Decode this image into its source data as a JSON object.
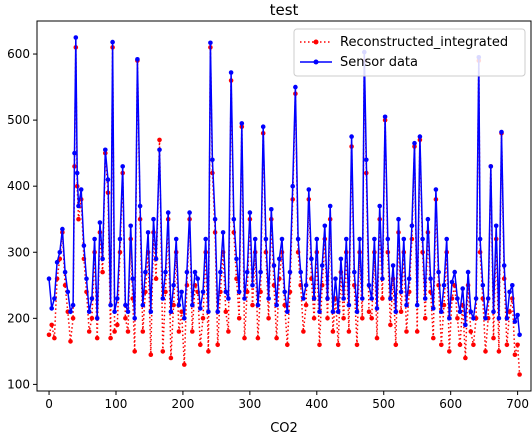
{
  "chart_data": {
    "type": "line",
    "title": "test",
    "xlabel": "CO2",
    "ylabel": "",
    "xlim": [
      -18,
      720
    ],
    "ylim": [
      90,
      650
    ],
    "x_ticks": [
      0,
      100,
      200,
      300,
      400,
      500,
      600,
      700
    ],
    "y_ticks": [
      100,
      200,
      300,
      400,
      500,
      600
    ],
    "grid": false,
    "legend_position": "top-right",
    "series": [
      {
        "name": "Reconstructed_integrated",
        "color": "#ff0000",
        "line_style": "dotted",
        "marker": "circle",
        "x": [
          0,
          4,
          8,
          12,
          16,
          20,
          24,
          28,
          32,
          36,
          38,
          40,
          42,
          44,
          48,
          52,
          56,
          60,
          64,
          68,
          72,
          76,
          80,
          84,
          88,
          92,
          95,
          98,
          102,
          106,
          110,
          114,
          118,
          122,
          125,
          128,
          132,
          136,
          140,
          144,
          148,
          152,
          156,
          160,
          165,
          170,
          174,
          178,
          182,
          186,
          190,
          194,
          198,
          202,
          206,
          210,
          214,
          218,
          222,
          226,
          230,
          234,
          238,
          241,
          244,
          248,
          252,
          256,
          260,
          264,
          268,
          272,
          276,
          280,
          284,
          288,
          292,
          296,
          300,
          304,
          308,
          312,
          316,
          320,
          324,
          328,
          332,
          336,
          340,
          344,
          348,
          352,
          356,
          360,
          364,
          368,
          372,
          376,
          380,
          384,
          388,
          392,
          396,
          400,
          404,
          408,
          412,
          416,
          420,
          424,
          428,
          432,
          436,
          440,
          444,
          448,
          452,
          456,
          460,
          464,
          468,
          471,
          474,
          478,
          482,
          486,
          490,
          494,
          498,
          502,
          506,
          510,
          514,
          518,
          522,
          526,
          530,
          534,
          538,
          542,
          546,
          550,
          554,
          558,
          562,
          566,
          570,
          574,
          578,
          582,
          586,
          590,
          594,
          598,
          602,
          606,
          610,
          614,
          618,
          622,
          626,
          630,
          634,
          638,
          642,
          644,
          648,
          652,
          656,
          660,
          664,
          668,
          672,
          676,
          680,
          684,
          688,
          692,
          696,
          700,
          703
        ],
        "y": [
          175,
          190,
          170,
          260,
          290,
          330,
          250,
          210,
          165,
          200,
          430,
          610,
          400,
          350,
          380,
          290,
          240,
          180,
          200,
          300,
          170,
          330,
          270,
          450,
          390,
          170,
          610,
          180,
          190,
          300,
          420,
          200,
          180,
          320,
          230,
          150,
          590,
          350,
          180,
          240,
          300,
          145,
          330,
          260,
          470,
          150,
          240,
          350,
          140,
          220,
          300,
          180,
          210,
          130,
          250,
          350,
          180,
          250,
          240,
          160,
          200,
          300,
          150,
          610,
          420,
          330,
          160,
          240,
          300,
          210,
          180,
          560,
          330,
          260,
          200,
          490,
          170,
          240,
          350,
          220,
          300,
          170,
          240,
          480,
          300,
          200,
          350,
          250,
          170,
          260,
          300,
          220,
          160,
          240,
          380,
          540,
          300,
          250,
          180,
          220,
          380,
          260,
          200,
          300,
          160,
          250,
          320,
          200,
          350,
          180,
          230,
          160,
          270,
          200,
          300,
          180,
          460,
          250,
          160,
          300,
          200,
          590,
          420,
          210,
          200,
          300,
          170,
          350,
          230,
          500,
          300,
          190,
          260,
          160,
          330,
          210,
          300,
          180,
          240,
          320,
          460,
          180,
          470,
          300,
          200,
          330,
          240,
          170,
          380,
          250,
          160,
          220,
          300,
          150,
          230,
          250,
          200,
          160,
          220,
          140,
          250,
          180,
          160,
          200,
          590,
          300,
          230,
          150,
          200,
          430,
          170,
          320,
          150,
          480,
          260,
          160,
          210,
          230,
          145,
          160,
          115
        ]
      },
      {
        "name": "Sensor data",
        "color": "#0000ff",
        "line_style": "solid",
        "marker": "circle",
        "x": [
          0,
          4,
          8,
          12,
          16,
          20,
          24,
          28,
          32,
          36,
          38,
          40,
          42,
          44,
          48,
          52,
          56,
          60,
          64,
          68,
          72,
          76,
          80,
          84,
          88,
          92,
          95,
          98,
          102,
          106,
          110,
          114,
          118,
          122,
          125,
          128,
          132,
          136,
          140,
          144,
          148,
          152,
          156,
          160,
          165,
          170,
          174,
          178,
          182,
          186,
          190,
          194,
          198,
          202,
          206,
          210,
          214,
          218,
          222,
          226,
          230,
          234,
          238,
          241,
          244,
          248,
          252,
          256,
          260,
          264,
          268,
          272,
          276,
          280,
          284,
          288,
          292,
          296,
          300,
          304,
          308,
          312,
          316,
          320,
          324,
          328,
          332,
          336,
          340,
          344,
          348,
          352,
          356,
          360,
          364,
          368,
          372,
          376,
          380,
          384,
          388,
          392,
          396,
          400,
          404,
          408,
          412,
          416,
          420,
          424,
          428,
          432,
          436,
          440,
          444,
          448,
          452,
          456,
          460,
          464,
          468,
          471,
          474,
          478,
          482,
          486,
          490,
          494,
          498,
          502,
          506,
          510,
          514,
          518,
          522,
          526,
          530,
          534,
          538,
          542,
          546,
          550,
          554,
          558,
          562,
          566,
          570,
          574,
          578,
          582,
          586,
          590,
          594,
          598,
          602,
          606,
          610,
          614,
          618,
          622,
          626,
          630,
          634,
          638,
          642,
          644,
          648,
          652,
          656,
          660,
          664,
          668,
          672,
          676,
          680,
          684,
          688,
          692,
          696,
          700,
          703
        ],
        "y": [
          260,
          215,
          230,
          285,
          300,
          335,
          270,
          240,
          210,
          220,
          450,
          625,
          420,
          370,
          395,
          310,
          260,
          210,
          230,
          320,
          200,
          345,
          290,
          455,
          410,
          220,
          618,
          210,
          230,
          320,
          430,
          220,
          210,
          340,
          260,
          200,
          592,
          370,
          220,
          270,
          330,
          210,
          350,
          290,
          455,
          230,
          270,
          360,
          210,
          250,
          320,
          220,
          240,
          200,
          270,
          360,
          220,
          270,
          260,
          215,
          240,
          320,
          210,
          617,
          440,
          350,
          210,
          270,
          330,
          240,
          230,
          572,
          350,
          290,
          240,
          495,
          230,
          270,
          360,
          250,
          320,
          220,
          270,
          490,
          320,
          230,
          365,
          280,
          220,
          290,
          320,
          240,
          210,
          270,
          400,
          550,
          320,
          270,
          230,
          250,
          395,
          290,
          230,
          320,
          210,
          280,
          340,
          230,
          370,
          210,
          260,
          210,
          290,
          230,
          320,
          220,
          475,
          270,
          210,
          320,
          230,
          603,
          440,
          250,
          230,
          320,
          215,
          370,
          260,
          505,
          320,
          230,
          280,
          210,
          350,
          240,
          320,
          220,
          260,
          340,
          465,
          220,
          475,
          320,
          230,
          350,
          260,
          215,
          395,
          270,
          210,
          250,
          320,
          200,
          255,
          270,
          230,
          210,
          245,
          190,
          270,
          210,
          200,
          230,
          595,
          320,
          250,
          200,
          230,
          430,
          210,
          340,
          200,
          482,
          280,
          200,
          240,
          250,
          195,
          205,
          175
        ]
      }
    ]
  }
}
